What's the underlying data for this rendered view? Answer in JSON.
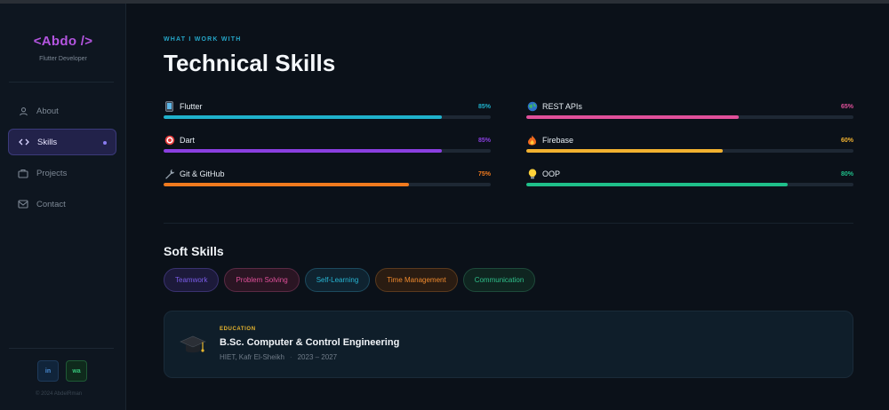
{
  "sidebar": {
    "logo": "<Abdo />",
    "role": "Flutter Developer",
    "nav": [
      {
        "label": "About",
        "icon": "user-icon"
      },
      {
        "label": "Skills",
        "icon": "code-icon",
        "active": true
      },
      {
        "label": "Projects",
        "icon": "briefcase-icon"
      },
      {
        "label": "Contact",
        "icon": "mail-icon"
      }
    ],
    "socials": [
      {
        "label": "in",
        "icon": "linkedin-icon"
      },
      {
        "label": "wa",
        "icon": "whatsapp-icon"
      }
    ],
    "copyright": "© 2024 AbdelRman"
  },
  "main": {
    "eyebrow": "WHAT I WORK WITH",
    "title": "Technical Skills",
    "skills": [
      {
        "name": "Flutter",
        "percent": 85,
        "percent_label": "85%",
        "icon": "phone-icon",
        "color": "#1fb2cc"
      },
      {
        "name": "REST APIs",
        "percent": 65,
        "percent_label": "65%",
        "icon": "globe-icon",
        "color": "#e0509a"
      },
      {
        "name": "Dart",
        "percent": 85,
        "percent_label": "85%",
        "icon": "target-icon",
        "color": "#8a3fe0"
      },
      {
        "name": "Firebase",
        "percent": 60,
        "percent_label": "60%",
        "icon": "fire-icon",
        "color": "#f2b230"
      },
      {
        "name": "Git & GitHub",
        "percent": 75,
        "percent_label": "75%",
        "icon": "wrench-icon",
        "color": "#f07a1e"
      },
      {
        "name": "OOP",
        "percent": 80,
        "percent_label": "80%",
        "icon": "bulb-icon",
        "color": "#1fc08a"
      }
    ],
    "soft_title": "Soft Skills",
    "soft_skills": [
      {
        "label": "Teamwork",
        "color": "#7a5ce8",
        "bg": "#1c1a3a",
        "border": "#3a3270"
      },
      {
        "label": "Problem Solving",
        "color": "#e0509a",
        "bg": "#2a1523",
        "border": "#5a2a44"
      },
      {
        "label": "Self-Learning",
        "color": "#28b6d4",
        "bg": "#0f2330",
        "border": "#1d4a5e"
      },
      {
        "label": "Time Management",
        "color": "#f08a2e",
        "bg": "#2a1c12",
        "border": "#5a3a1e"
      },
      {
        "label": "Communication",
        "color": "#2fbf8a",
        "bg": "#0f2520",
        "border": "#1e4a3a"
      }
    ],
    "education": {
      "label": "EDUCATION",
      "degree": "B.Sc. Computer & Control Engineering",
      "school": "HIET, Kafr El-Sheikh",
      "separator": "·",
      "years": "2023 – 2027",
      "icon": "graduation-cap-icon"
    }
  }
}
